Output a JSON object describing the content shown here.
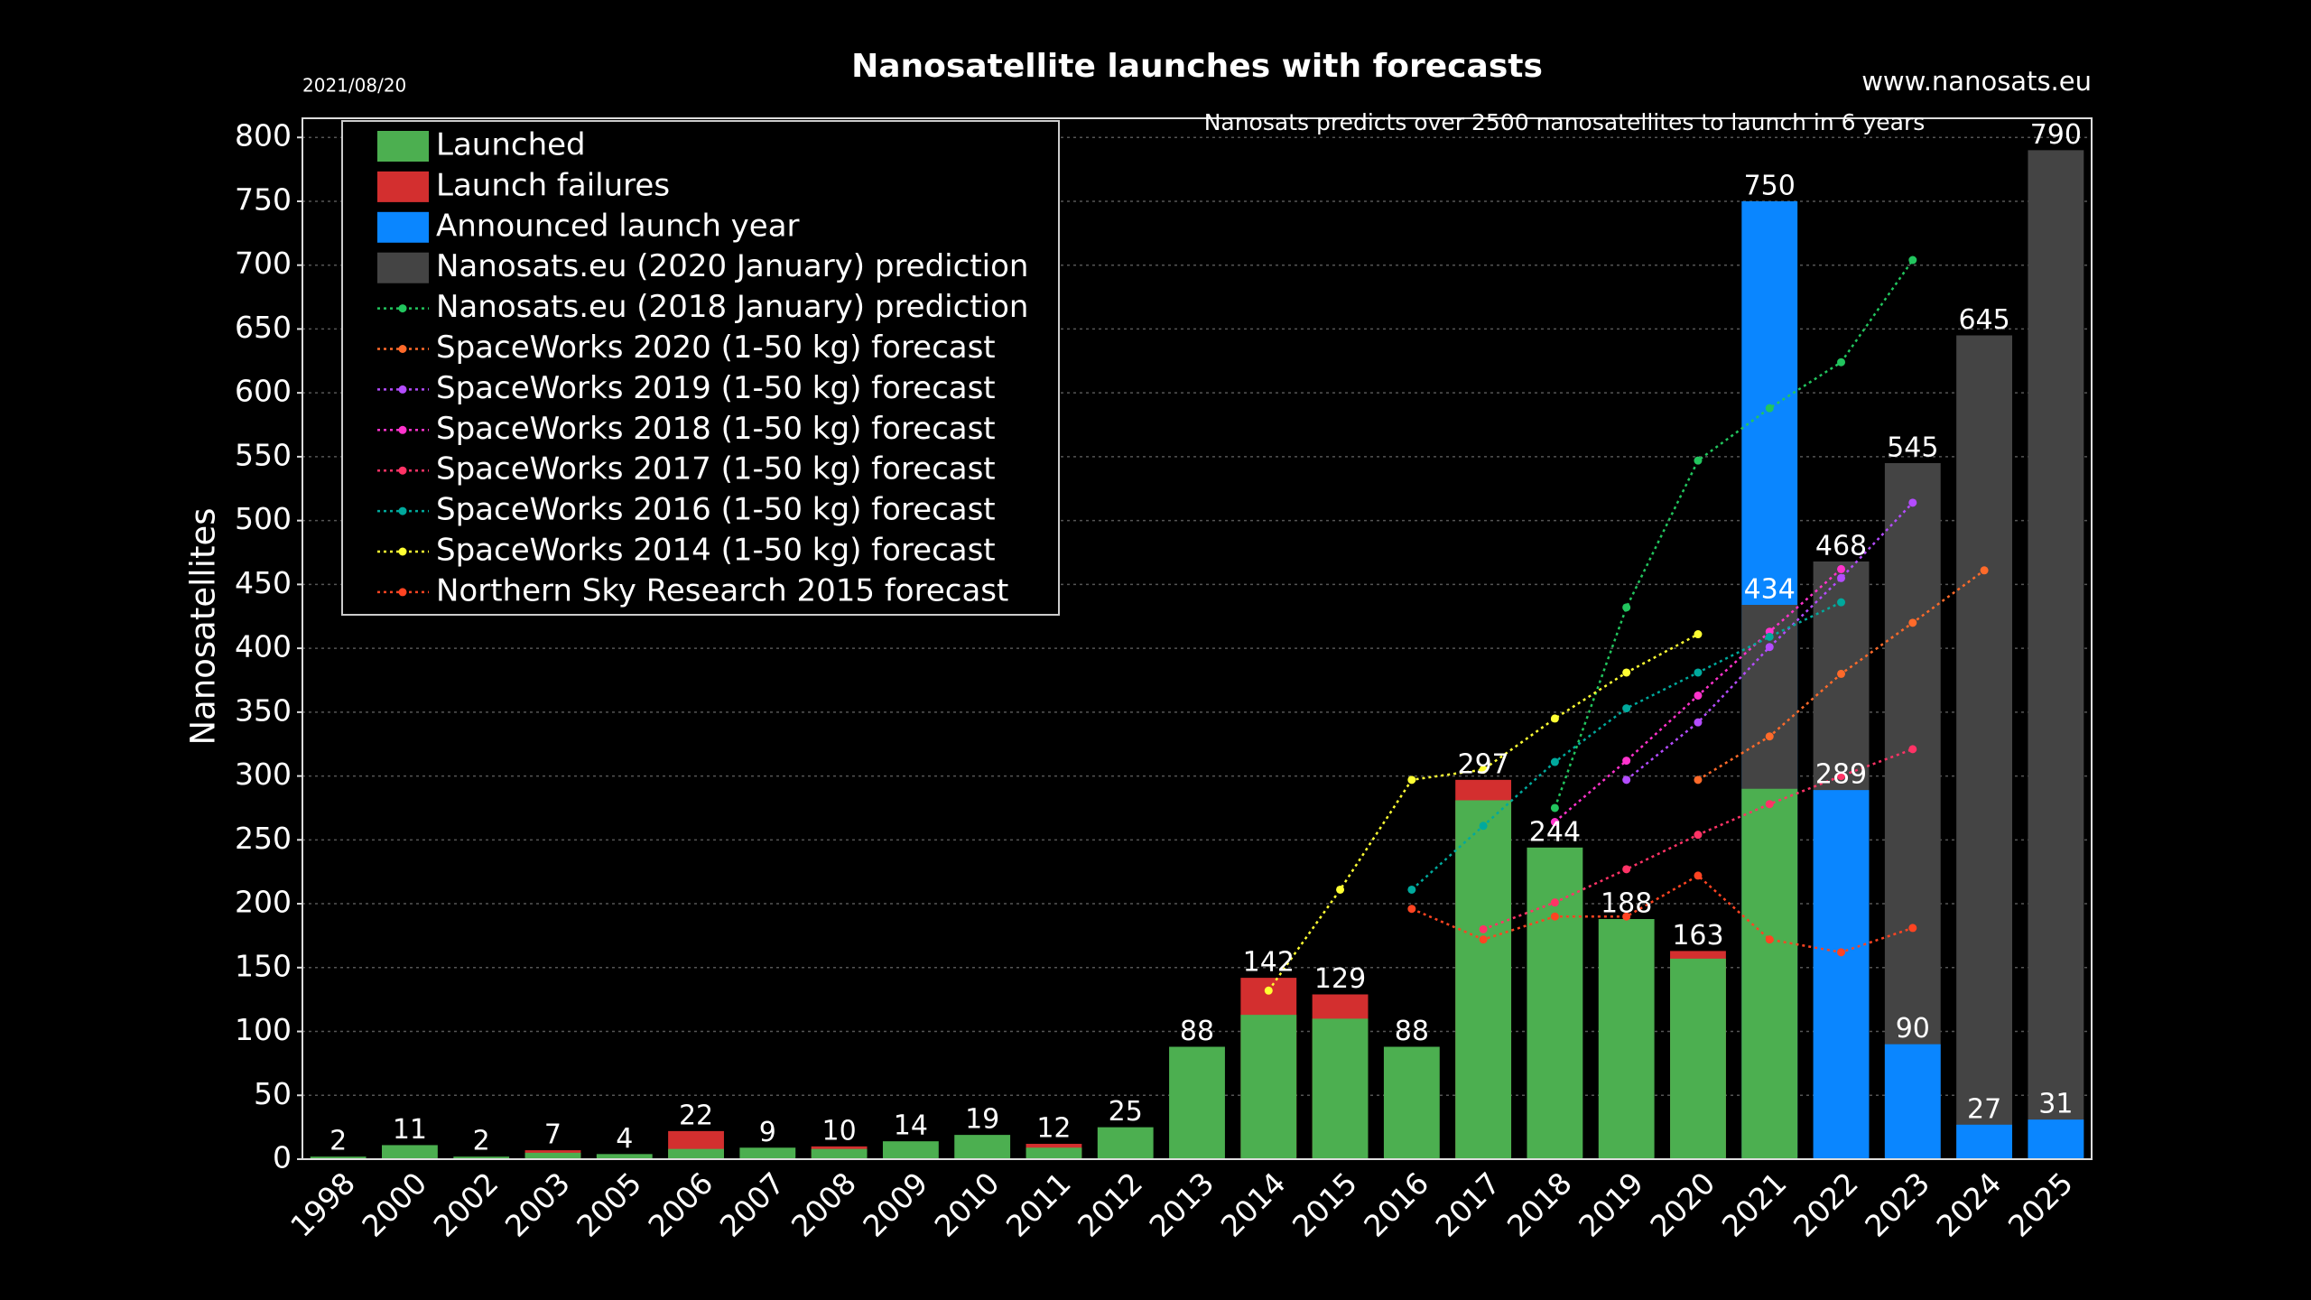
{
  "chart_data": {
    "type": "bar",
    "title": "Nanosatellite launches with forecasts",
    "date": "2021/08/20",
    "source": "www.nanosats.eu",
    "annotation": "Nanosats predicts over 2500 nanosatellites to launch in 6 years",
    "y_label": "Nanosatellites",
    "categories": [
      "1998",
      "2000",
      "2002",
      "2003",
      "2005",
      "2006",
      "2007",
      "2008",
      "2009",
      "2010",
      "2011",
      "2012",
      "2013",
      "2014",
      "2015",
      "2016",
      "2017",
      "2018",
      "2019",
      "2020",
      "2021",
      "2022",
      "2023",
      "2024",
      "2025"
    ],
    "ylim": [
      0,
      815
    ],
    "yticks": [
      0,
      50,
      100,
      150,
      200,
      250,
      300,
      350,
      400,
      450,
      500,
      550,
      600,
      650,
      700,
      750,
      800
    ],
    "grid": true,
    "legend": "upper left",
    "series": [
      {
        "name": "Launched",
        "type": "bar",
        "color": "#4caf50",
        "values": [
          2,
          11,
          2,
          5,
          4,
          8,
          9,
          8,
          14,
          19,
          9,
          25,
          88,
          113,
          110,
          88,
          281,
          244,
          188,
          157,
          290,
          null,
          null,
          null,
          null
        ]
      },
      {
        "name": "Launch failures",
        "type": "bar",
        "color": "#d32f2f",
        "values": [
          null,
          null,
          null,
          7,
          null,
          22,
          null,
          10,
          null,
          null,
          12,
          null,
          null,
          142,
          129,
          null,
          297,
          null,
          null,
          163,
          null,
          null,
          null,
          null,
          null
        ]
      },
      {
        "name": "Announced launch year",
        "type": "bar",
        "color": "#0a86ff",
        "values": [
          null,
          null,
          null,
          null,
          null,
          null,
          null,
          null,
          null,
          null,
          null,
          null,
          null,
          null,
          null,
          null,
          null,
          null,
          null,
          null,
          750,
          289,
          90,
          27,
          31
        ]
      },
      {
        "name": "Nanosats.eu (2020 January) prediction",
        "type": "bar",
        "color": "#444444",
        "values": [
          null,
          null,
          null,
          null,
          null,
          null,
          null,
          null,
          null,
          null,
          null,
          null,
          null,
          null,
          null,
          null,
          null,
          null,
          null,
          null,
          434,
          468,
          545,
          645,
          790
        ]
      },
      {
        "name": "Nanosats.eu (2018 January) prediction",
        "type": "line",
        "color": "#22c55e",
        "values": [
          null,
          null,
          null,
          null,
          null,
          null,
          null,
          null,
          null,
          null,
          null,
          null,
          null,
          null,
          null,
          null,
          null,
          275,
          432,
          547,
          588,
          624,
          704,
          null,
          null
        ]
      },
      {
        "name": "SpaceWorks 2020 (1-50 kg) forecast",
        "type": "line",
        "color": "#ff6a2a",
        "values": [
          null,
          null,
          null,
          null,
          null,
          null,
          null,
          null,
          null,
          null,
          null,
          null,
          null,
          null,
          null,
          null,
          null,
          null,
          null,
          297,
          331,
          380,
          420,
          461,
          null
        ]
      },
      {
        "name": "SpaceWorks 2019 (1-50 kg) forecast",
        "type": "line",
        "color": "#b44cff",
        "values": [
          null,
          null,
          null,
          null,
          null,
          null,
          null,
          null,
          null,
          null,
          null,
          null,
          null,
          null,
          null,
          null,
          null,
          null,
          297,
          342,
          401,
          455,
          514,
          null,
          null
        ]
      },
      {
        "name": "SpaceWorks 2018 (1-50 kg) forecast",
        "type": "line",
        "color": "#ff33cc",
        "values": [
          null,
          null,
          null,
          null,
          null,
          null,
          null,
          null,
          null,
          null,
          null,
          null,
          null,
          null,
          null,
          null,
          null,
          264,
          312,
          363,
          413,
          462,
          null,
          null,
          null
        ]
      },
      {
        "name": "SpaceWorks 2017 (1-50 kg) forecast",
        "type": "line",
        "color": "#ff3366",
        "values": [
          null,
          null,
          null,
          null,
          null,
          null,
          null,
          null,
          null,
          null,
          null,
          null,
          null,
          null,
          null,
          null,
          180,
          201,
          227,
          254,
          278,
          300,
          321,
          null,
          null
        ]
      },
      {
        "name": "SpaceWorks 2016 (1-50 kg) forecast",
        "type": "line",
        "color": "#00a99d",
        "values": [
          null,
          null,
          null,
          null,
          null,
          null,
          null,
          null,
          null,
          null,
          null,
          null,
          null,
          null,
          null,
          211,
          261,
          311,
          353,
          381,
          409,
          436,
          null,
          null,
          null
        ]
      },
      {
        "name": "SpaceWorks 2014 (1-50 kg) forecast",
        "type": "line",
        "color": "#ffff33",
        "values": [
          null,
          null,
          null,
          null,
          null,
          null,
          null,
          null,
          null,
          null,
          null,
          null,
          null,
          132,
          211,
          297,
          305,
          345,
          381,
          411,
          null,
          null,
          null,
          null,
          null
        ]
      },
      {
        "name": "Northern Sky Research 2015 forecast",
        "type": "line",
        "color": "#ff4422",
        "values": [
          null,
          null,
          null,
          null,
          null,
          null,
          null,
          null,
          null,
          null,
          null,
          null,
          null,
          null,
          null,
          196,
          172,
          190,
          190,
          222,
          172,
          162,
          181,
          null,
          null
        ]
      }
    ]
  }
}
